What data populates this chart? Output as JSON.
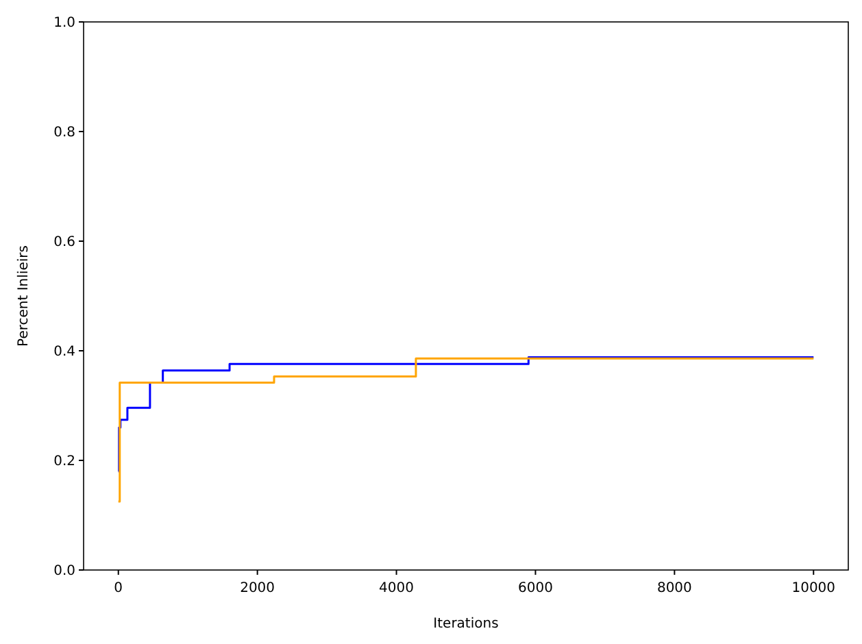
{
  "chart_data": {
    "type": "step",
    "xlabel": "Iterations",
    "ylabel": "Percent Inlieirs",
    "xlim": [
      -500,
      10500
    ],
    "xticks": [
      0,
      2000,
      4000,
      6000,
      8000,
      10000
    ],
    "ylim": [
      0,
      1
    ],
    "yticks": [
      {
        "value": 0,
        "label": "0.0"
      },
      0.2,
      0.4,
      0.6,
      0.8,
      {
        "value": 1,
        "label": "1.0"
      }
    ],
    "grid": false,
    "series": [
      {
        "color": "#0000ff",
        "x": [
          0,
          10,
          30,
          130,
          455,
          640,
          1600,
          5900,
          10000
        ],
        "values": [
          0.18,
          0.26,
          0.274,
          0.296,
          0.342,
          0.364,
          0.376,
          0.388,
          0.388
        ]
      },
      {
        "color": "#ffa500",
        "x": [
          0,
          20,
          2240,
          4280,
          10000
        ],
        "values": [
          0.125,
          0.342,
          0.353,
          0.386,
          0.386
        ]
      }
    ]
  }
}
